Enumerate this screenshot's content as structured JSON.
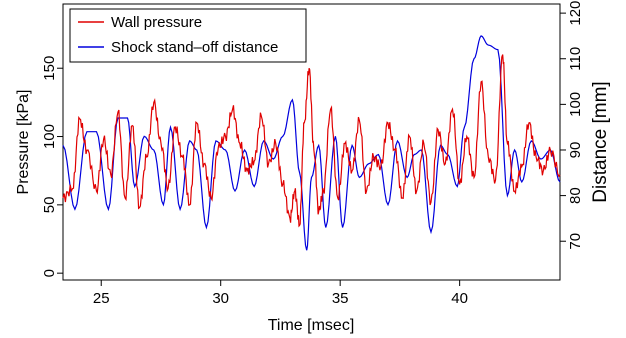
{
  "chart_data": {
    "type": "line",
    "title": "",
    "xlabel": "Time [msec]",
    "ylabel_left": "Pressure [kPa]",
    "ylabel_right": "Distance [mm]",
    "xlim": [
      23.4,
      44.2
    ],
    "ylim_left": [
      -5,
      197
    ],
    "ylim_right": [
      61.5,
      122.0
    ],
    "x_ticks": [
      25,
      30,
      35,
      40
    ],
    "y_ticks_left": [
      0,
      50,
      100,
      150
    ],
    "y_ticks_right": [
      70,
      80,
      90,
      100,
      110,
      120
    ],
    "grid": false,
    "legend_position": "top-left",
    "series": [
      {
        "name": "Wall pressure",
        "axis": "left",
        "color": "#e00000",
        "x": [
          23.4,
          23.8,
          24.1,
          24.4,
          24.8,
          25.1,
          25.4,
          25.7,
          26.0,
          26.3,
          26.6,
          26.9,
          27.2,
          27.5,
          27.8,
          28.1,
          28.4,
          28.7,
          29.0,
          29.3,
          29.6,
          29.9,
          30.2,
          30.5,
          30.8,
          31.1,
          31.4,
          31.7,
          32.0,
          32.3,
          32.6,
          32.9,
          33.1,
          33.3,
          33.5,
          33.7,
          33.9,
          34.1,
          34.3,
          34.6,
          34.9,
          35.2,
          35.5,
          35.8,
          36.1,
          36.4,
          36.7,
          37.0,
          37.3,
          37.6,
          37.9,
          38.2,
          38.5,
          38.8,
          39.1,
          39.4,
          39.7,
          40.0,
          40.3,
          40.6,
          40.9,
          41.2,
          41.5,
          41.8,
          42.0,
          42.3,
          42.6,
          42.9,
          43.2,
          43.5,
          43.8,
          44.2
        ],
        "values": [
          55,
          62,
          113,
          90,
          60,
          98,
          72,
          118,
          55,
          108,
          48,
          85,
          125,
          95,
          62,
          107,
          85,
          50,
          110,
          80,
          55,
          92,
          100,
          120,
          95,
          75,
          82,
          115,
          80,
          95,
          65,
          40,
          60,
          35,
          110,
          150,
          90,
          45,
          60,
          120,
          55,
          95,
          75,
          112,
          60,
          85,
          78,
          110,
          90,
          55,
          100,
          60,
          95,
          52,
          105,
          80,
          120,
          65,
          100,
          70,
          140,
          85,
          68,
          160,
          95,
          60,
          78,
          110,
          85,
          75,
          90,
          72
        ]
      },
      {
        "name": "Shock stand–off distance",
        "axis": "right",
        "color": "#0000dd",
        "x": [
          23.4,
          23.9,
          24.4,
          24.8,
          25.3,
          25.7,
          26.1,
          26.4,
          26.8,
          27.2,
          27.6,
          27.9,
          28.3,
          28.7,
          29.0,
          29.4,
          29.8,
          30.2,
          30.6,
          31.0,
          31.4,
          31.8,
          32.2,
          32.6,
          33.0,
          33.3,
          33.6,
          33.8,
          34.1,
          34.4,
          34.8,
          35.1,
          35.5,
          35.8,
          36.2,
          36.6,
          37.0,
          37.4,
          37.8,
          38.1,
          38.4,
          38.8,
          39.2,
          39.5,
          39.9,
          40.2,
          40.6,
          40.9,
          41.2,
          41.6,
          42.0,
          42.3,
          42.6,
          43.0,
          43.4,
          43.8,
          44.2
        ],
        "values": [
          91,
          77,
          94,
          94,
          77,
          97,
          97,
          82,
          93,
          90,
          78,
          95,
          77,
          92,
          90,
          73,
          92,
          90,
          81,
          90,
          82,
          92,
          88,
          93,
          101,
          85,
          68,
          84,
          91,
          73,
          93,
          73,
          91,
          84,
          87,
          89,
          78,
          92,
          84,
          89,
          90,
          72,
          91,
          89,
          82,
          95,
          110,
          115,
          113,
          112,
          80,
          90,
          83,
          92,
          88,
          90,
          83
        ]
      }
    ]
  }
}
